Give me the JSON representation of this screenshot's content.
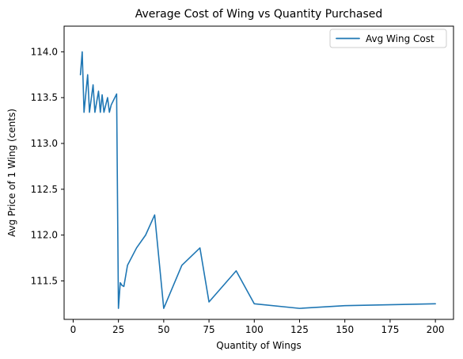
{
  "chart_data": {
    "type": "line",
    "title": "Average Cost of Wing vs Quantity Purchased",
    "xlabel": "Quantity of Wings",
    "ylabel": "Avg Price of 1 Wing (cents)",
    "xlim": [
      -5,
      210
    ],
    "ylim": [
      111.08,
      114.28
    ],
    "xticks": [
      0,
      25,
      50,
      75,
      100,
      125,
      150,
      175,
      200
    ],
    "yticks": [
      111.5,
      112.0,
      112.5,
      113.0,
      113.5,
      114.0
    ],
    "ytick_labels": [
      "111.5",
      "112.0",
      "112.5",
      "113.0",
      "113.5",
      "114.0"
    ],
    "grid": false,
    "legend_position": "top-right",
    "series": [
      {
        "name": "Avg Wing Cost",
        "color": "#1f77b4",
        "x": [
          4,
          5,
          6,
          8,
          9,
          11,
          12,
          14,
          15,
          16,
          17,
          19,
          20,
          21,
          24,
          25,
          26,
          27,
          28,
          30,
          35,
          40,
          45,
          50,
          60,
          70,
          75,
          90,
          100,
          125,
          150,
          200
        ],
        "y": [
          113.75,
          114.0,
          113.34,
          113.75,
          113.34,
          113.64,
          113.34,
          113.57,
          113.34,
          113.53,
          113.34,
          113.5,
          113.34,
          113.42,
          113.54,
          111.2,
          111.48,
          111.45,
          111.44,
          111.67,
          111.86,
          112.0,
          112.22,
          111.2,
          111.67,
          111.86,
          111.27,
          111.61,
          111.25,
          111.2,
          111.23,
          111.25
        ]
      }
    ]
  }
}
